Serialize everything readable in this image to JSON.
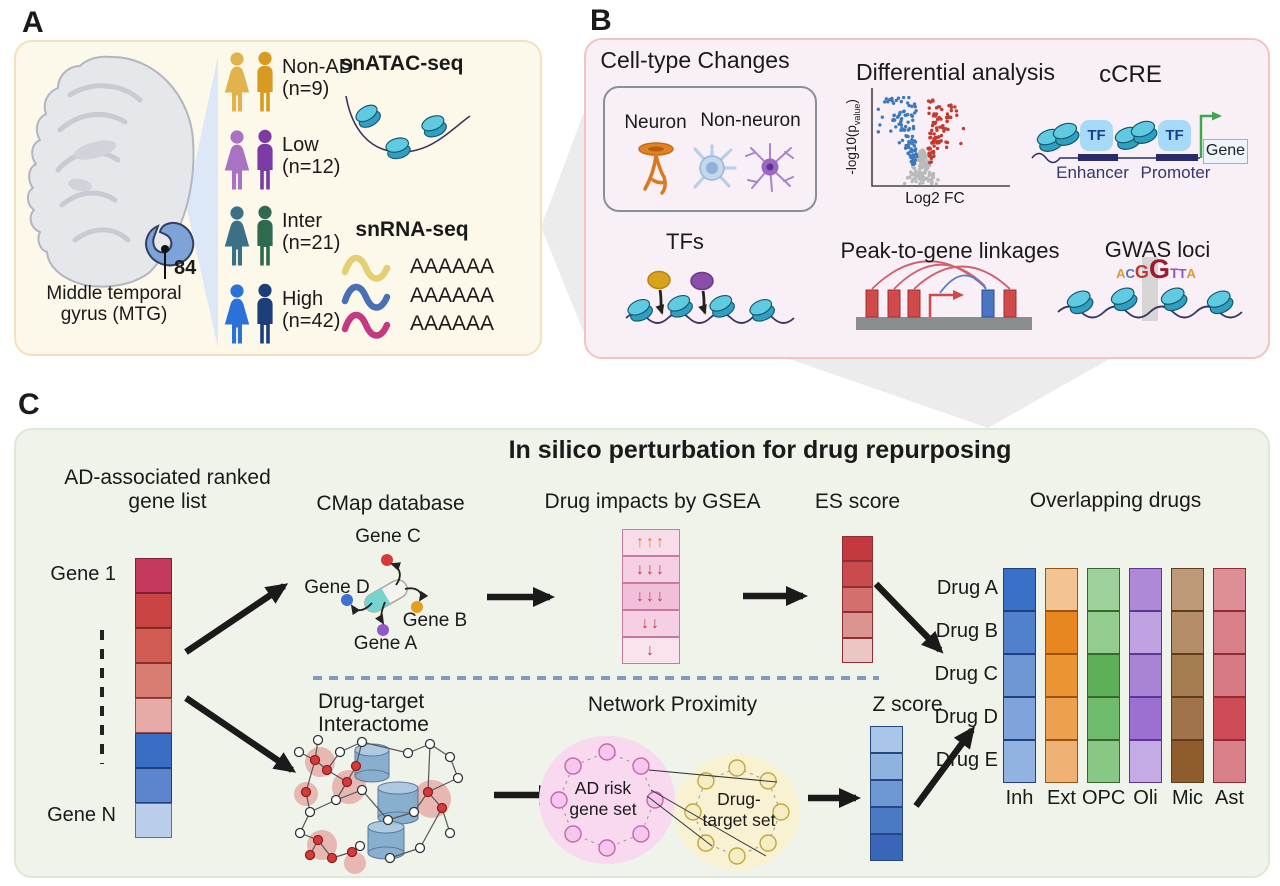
{
  "figure": {
    "panel_a_label": "A",
    "panel_b_label": "B",
    "panel_c_label": "C"
  },
  "panel_a": {
    "region_count": "84",
    "region_line1": "Middle temporal",
    "region_line2": "gyrus (MTG)",
    "atac_label": "snATAC-seq",
    "rna_label": "snRNA-seq",
    "cohorts": [
      {
        "name": "Non-AD",
        "n": "(n=9)",
        "female_color": "#e2b24c",
        "male_color": "#d89a1f"
      },
      {
        "name": "Low",
        "n": "(n=12)",
        "female_color": "#a972c2",
        "male_color": "#7b3aa4"
      },
      {
        "name": "Inter",
        "n": "(n=21)",
        "female_color": "#3b7086",
        "male_color": "#2f6a50"
      },
      {
        "name": "High",
        "n": "(n=42)",
        "female_color": "#2a71d8",
        "male_color": "#1c3f7b"
      }
    ],
    "rna_strands": [
      {
        "color": "#e5cf72",
        "tail": "AAAAAA"
      },
      {
        "color": "#4a6fb5",
        "tail": "AAAAAA"
      },
      {
        "color": "#c23a7f",
        "tail": "AAAAAA"
      }
    ]
  },
  "panel_b": {
    "cell_changes_title": "Cell-type Changes",
    "neuron_label": "Neuron",
    "non_neuron_label": "Non-neuron",
    "diff_title": "Differential analysis",
    "volcano": {
      "ylabel_main": "-log10(p",
      "ylabel_sub": "value",
      "ylabel_close": ")",
      "xlabel": "Log2 FC",
      "up_color": "#c33a30",
      "down_color": "#3d79bd",
      "ns_color": "#b9b9b9"
    },
    "ccre_title": "cCRE",
    "tf_box_label": "TF",
    "enhancer_label": "Enhancer",
    "promoter_label": "Promoter",
    "gene_label": "Gene",
    "tfs_title": "TFs",
    "p2g_title": "Peak-to-gene linkages",
    "gwas_title": "GWAS loci",
    "gwas_motif": [
      {
        "ch": "A",
        "color": "#e09a2e",
        "size": 13
      },
      {
        "ch": "C",
        "color": "#4a74c8",
        "size": 13
      },
      {
        "ch": "G",
        "color": "#c03a35",
        "size": 18
      },
      {
        "ch": "G",
        "color": "#9e1b2e",
        "size": 27
      },
      {
        "ch": "T",
        "color": "#8a5bbf",
        "size": 14
      },
      {
        "ch": "T",
        "color": "#8a5bbf",
        "size": 13
      },
      {
        "ch": "A",
        "color": "#e09a2e",
        "size": 13
      }
    ]
  },
  "panel_c": {
    "title": "In silico perturbation for drug repurposing",
    "gene_list": {
      "title_line1": "AD-associated ranked",
      "title_line2": "gene list",
      "top": "Gene 1",
      "bottom": "Gene N",
      "cells": [
        {
          "bg": "#c53a5c",
          "border": "#7e1f38"
        },
        {
          "bg": "#cb4444",
          "border": "#7e2424"
        },
        {
          "bg": "#d15c54",
          "border": "#8a2f2a"
        },
        {
          "bg": "#d97d73",
          "border": "#8a2f2a"
        },
        {
          "bg": "#e6aba6",
          "border": "#9a4a44"
        },
        {
          "bg": "#3a6ec5",
          "border": "#1d3f7e"
        },
        {
          "bg": "#5c85cd",
          "border": "#1d3f7e"
        },
        {
          "bg": "#bacdea",
          "border": "#51719e"
        }
      ]
    },
    "cmap": {
      "title": "CMap database",
      "gene_a": "Gene A",
      "gene_b": "Gene B",
      "gene_c": "Gene C",
      "gene_d": "Gene D",
      "dot_colors": {
        "a": "#9357c8",
        "b": "#e3a01f",
        "c": "#d43a3a",
        "d": "#3f6fd1"
      }
    },
    "gsea": {
      "title": "Drug impacts by GSEA",
      "up_color": "#e0752c",
      "down_color": "#c43b4e",
      "border": "#c9799f",
      "rows": [
        {
          "dir": "up",
          "count": 3,
          "bg": "#f8dcea"
        },
        {
          "dir": "down",
          "count": 3,
          "bg": "#f5cfe3"
        },
        {
          "dir": "down",
          "count": 3,
          "bg": "#f1bfda"
        },
        {
          "dir": "down",
          "count": 2,
          "bg": "#f5cfe3"
        },
        {
          "dir": "down",
          "count": 1,
          "bg": "#f9e3ef"
        }
      ]
    },
    "es": {
      "title": "ES score",
      "border": "#8e2f35",
      "cells": [
        "#c4383f",
        "#c94b4d",
        "#d3706e",
        "#dc9490",
        "#ebc6c2"
      ]
    },
    "interactome": {
      "title_line1": "Drug-target",
      "title_line2": "Interactome"
    },
    "proximity": {
      "title": "Network Proximity",
      "set1_line1": "AD risk",
      "set1_line2": "gene set",
      "set2_line1": "Drug-",
      "set2_line2": "target set"
    },
    "z": {
      "title": "Z score",
      "border": "#27477e",
      "cells": [
        "#a9c6e8",
        "#8fb3df",
        "#6d97d2",
        "#4b7ac5",
        "#3a66ba"
      ]
    },
    "overlap": {
      "title": "Overlapping drugs",
      "row_labels": [
        "Drug A",
        "Drug B",
        "Drug C",
        "Drug D",
        "Drug E"
      ],
      "columns": [
        {
          "label": "Inh",
          "border": "#1f3f7e",
          "cells": [
            "#3a70c8",
            "#5181cd",
            "#6f97d3",
            "#7fa3da",
            "#92b3e1"
          ]
        },
        {
          "label": "Ext",
          "border": "#9a5410",
          "cells": [
            "#f2c493",
            "#e8871f",
            "#eb9434",
            "#eda050",
            "#f0b274"
          ]
        },
        {
          "label": "OPC",
          "border": "#33682f",
          "cells": [
            "#9fd29b",
            "#92cc8e",
            "#5cb158",
            "#6fbb6b",
            "#88c784"
          ]
        },
        {
          "label": "Oli",
          "border": "#5d3594",
          "cells": [
            "#af89d8",
            "#bfa2e2",
            "#a983d6",
            "#9b70d0",
            "#c4abe5"
          ]
        },
        {
          "label": "Mic",
          "border": "#5f3d1c",
          "cells": [
            "#bd9977",
            "#b58e69",
            "#a67c51",
            "#a1734a",
            "#8f5c2c"
          ]
        },
        {
          "label": "Ast",
          "border": "#8e2b35",
          "cells": [
            "#dd8e97",
            "#d97f89",
            "#d87a85",
            "#cf4c57",
            "#d97f87"
          ]
        }
      ]
    }
  }
}
